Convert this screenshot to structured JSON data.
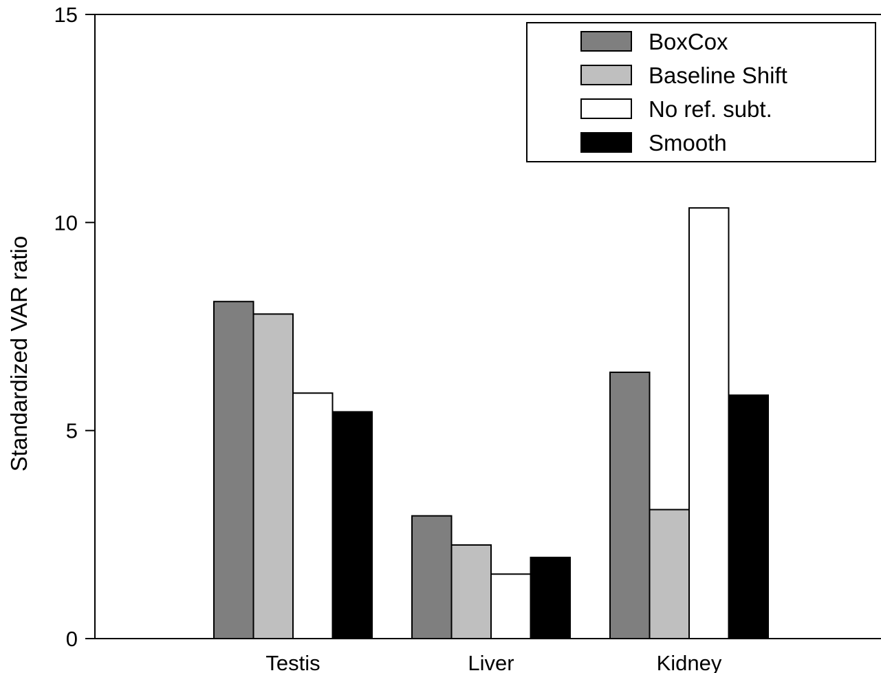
{
  "chart_data": {
    "type": "bar",
    "ylabel": "Standardized VAR ratio",
    "xlabel": "",
    "categories": [
      "Testis",
      "Liver",
      "Kidney"
    ],
    "ylim": [
      0,
      15
    ],
    "yticks": [
      "0",
      "5",
      "10",
      "15"
    ],
    "grid": false,
    "legend_position": "top-right",
    "series": [
      {
        "name": "BoxCox",
        "color": "#7f7f7f",
        "values": [
          8.1,
          2.95,
          6.4
        ]
      },
      {
        "name": "Baseline Shift",
        "color": "#bfbfbf",
        "values": [
          7.8,
          2.25,
          3.1
        ]
      },
      {
        "name": "No ref. subt.",
        "color": "#ffffff",
        "values": [
          5.9,
          1.55,
          10.35
        ]
      },
      {
        "name": "Smooth",
        "color": "#000000",
        "values": [
          5.45,
          1.95,
          5.85
        ]
      }
    ]
  }
}
